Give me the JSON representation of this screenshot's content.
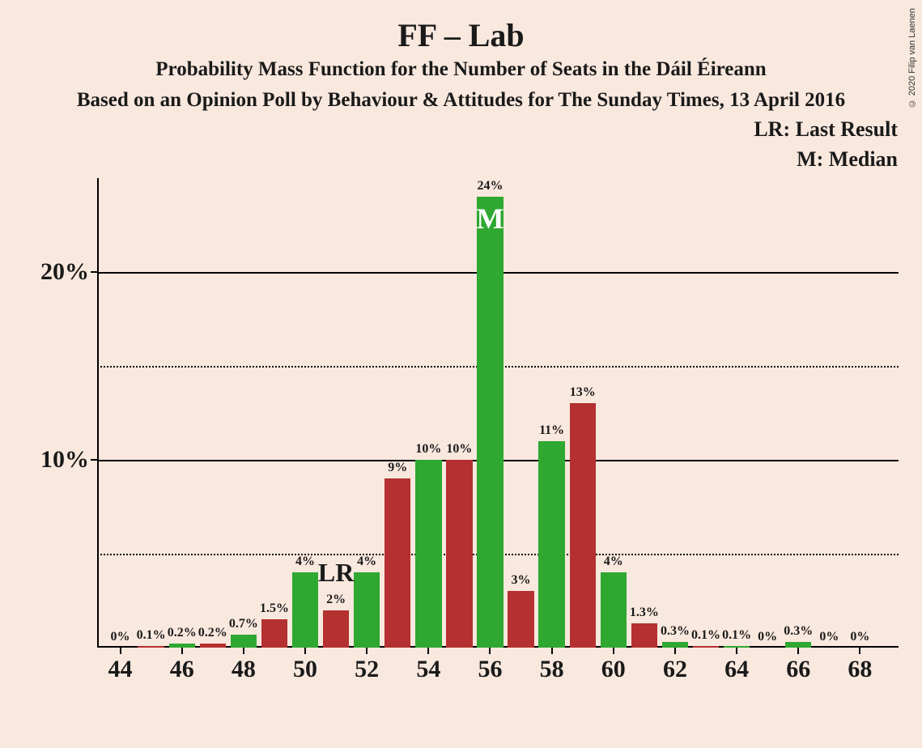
{
  "title": "FF – Lab",
  "subtitle1": "Probability Mass Function for the Number of Seats in the Dáil Éireann",
  "subtitle2": "Based on an Opinion Poll by Behaviour & Attitudes for The Sunday Times, 13 April 2016",
  "legend_lr": "LR: Last Result",
  "legend_m": "M: Median",
  "copyright": "© 2020 Filip van Laenen",
  "chart": {
    "type": "bar",
    "background_color": "#f9e8de",
    "text_color": "#1a1a1a",
    "grid_color": "#000000",
    "colors": {
      "green": "#2ea830",
      "red": "#b53030"
    },
    "title_fontsize": 40,
    "subtitle_fontsize": 25,
    "legend_fontsize": 26,
    "bar_label_fontsize": 16,
    "axis_label_fontsize": 30,
    "lr_fontsize": 32,
    "m_fontsize": 36,
    "m_color": "#ffffff",
    "ylim": [
      0,
      25
    ],
    "y_major_ticks": [
      10,
      20
    ],
    "y_minor_ticks": [
      5,
      15
    ],
    "y_major_labels": [
      "10%",
      "20%"
    ],
    "x_range": [
      44,
      68
    ],
    "x_ticks": [
      44,
      46,
      48,
      50,
      52,
      54,
      56,
      58,
      60,
      62,
      64,
      66,
      68
    ],
    "x_tick_step": 2,
    "bar_width_ratio": 0.85,
    "lr_at": 51,
    "median_at": 56,
    "bars": [
      {
        "x": 44,
        "value": 0,
        "label": "0%",
        "color": "green"
      },
      {
        "x": 45,
        "value": 0.1,
        "label": "0.1%",
        "color": "red"
      },
      {
        "x": 46,
        "value": 0.2,
        "label": "0.2%",
        "color": "green"
      },
      {
        "x": 47,
        "value": 0.2,
        "label": "0.2%",
        "color": "red"
      },
      {
        "x": 48,
        "value": 0.7,
        "label": "0.7%",
        "color": "green"
      },
      {
        "x": 49,
        "value": 1.5,
        "label": "1.5%",
        "color": "red"
      },
      {
        "x": 50,
        "value": 4,
        "label": "4%",
        "color": "green"
      },
      {
        "x": 51,
        "value": 2,
        "label": "2%",
        "color": "red"
      },
      {
        "x": 52,
        "value": 4,
        "label": "4%",
        "color": "green"
      },
      {
        "x": 53,
        "value": 9,
        "label": "9%",
        "color": "red"
      },
      {
        "x": 54,
        "value": 10,
        "label": "10%",
        "color": "green"
      },
      {
        "x": 55,
        "value": 10,
        "label": "10%",
        "color": "red"
      },
      {
        "x": 56,
        "value": 24,
        "label": "24%",
        "color": "green"
      },
      {
        "x": 57,
        "value": 3,
        "label": "3%",
        "color": "red"
      },
      {
        "x": 58,
        "value": 11,
        "label": "11%",
        "color": "green"
      },
      {
        "x": 59,
        "value": 13,
        "label": "13%",
        "color": "red"
      },
      {
        "x": 60,
        "value": 4,
        "label": "4%",
        "color": "green"
      },
      {
        "x": 61,
        "value": 1.3,
        "label": "1.3%",
        "color": "red"
      },
      {
        "x": 62,
        "value": 0.3,
        "label": "0.3%",
        "color": "green"
      },
      {
        "x": 63,
        "value": 0.1,
        "label": "0.1%",
        "color": "red"
      },
      {
        "x": 64,
        "value": 0.1,
        "label": "0.1%",
        "color": "green"
      },
      {
        "x": 65,
        "value": 0,
        "label": "0%",
        "color": "red"
      },
      {
        "x": 66,
        "value": 0.3,
        "label": "0.3%",
        "color": "green"
      },
      {
        "x": 67,
        "value": 0,
        "label": "0%",
        "color": "red"
      },
      {
        "x": 68,
        "value": 0,
        "label": "0%",
        "color": "green"
      }
    ]
  }
}
